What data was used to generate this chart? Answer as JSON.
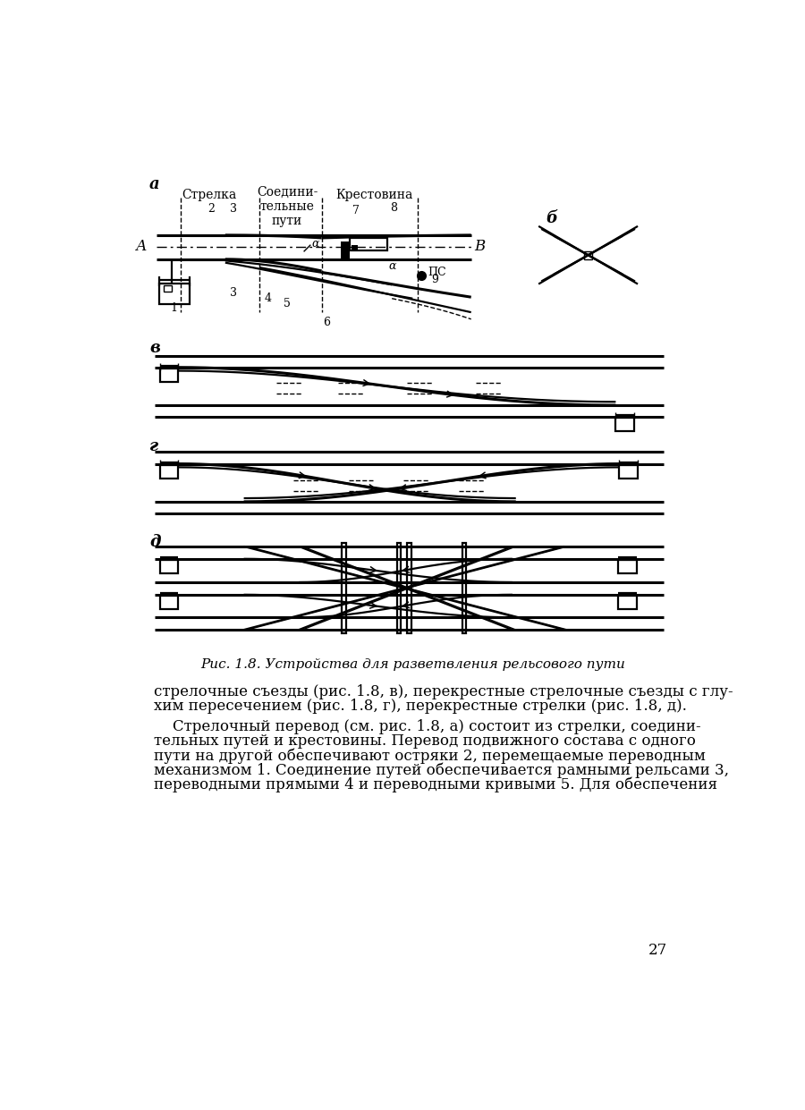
{
  "bg_color": "#ffffff",
  "fig_width": 9.0,
  "fig_height": 12.41,
  "caption": "Рис. 1.8. Устройства для разветвления рельсового пути",
  "page_num": "27",
  "text1_line1": "стрелочные съезды (рис. 1.8, в), перекрестные стрелочные съезды с глу-",
  "text1_line2": "хим пересечением (рис. 1.8, г), перекрестные стрелки (рис. 1.8, д).",
  "text2_line1": "    Стрелочный перевод (см. рис. 1.8, а) состоит из стрелки, соедини-",
  "text2_line2": "тельных путей и крестовины. Перевод подвижного состава с одного",
  "text2_line3": "пути на другой обеспечивают остряки 2, перемещаемые переводным",
  "text2_line4": "механизмом 1. Соединение путей обеспечивается рамными рельсами 3,",
  "text2_line5": "переводными прямыми 4 и переводными кривыми 5. Для обеспечения",
  "label_a": "а",
  "label_b": "б",
  "label_v": "в",
  "label_g": "г",
  "label_d": "д",
  "strelka": "Стрелка",
  "soed": "Соедини-\nтельные\nпути",
  "krest": "Крестовина",
  "label_A": "А",
  "label_B": "В",
  "label_PS": "ПС",
  "num2": "2",
  "num3": "3",
  "num4": "4",
  "num5": "5",
  "num6": "6",
  "num7": "7",
  "num8": "8",
  "num9": "9",
  "num1": "1"
}
